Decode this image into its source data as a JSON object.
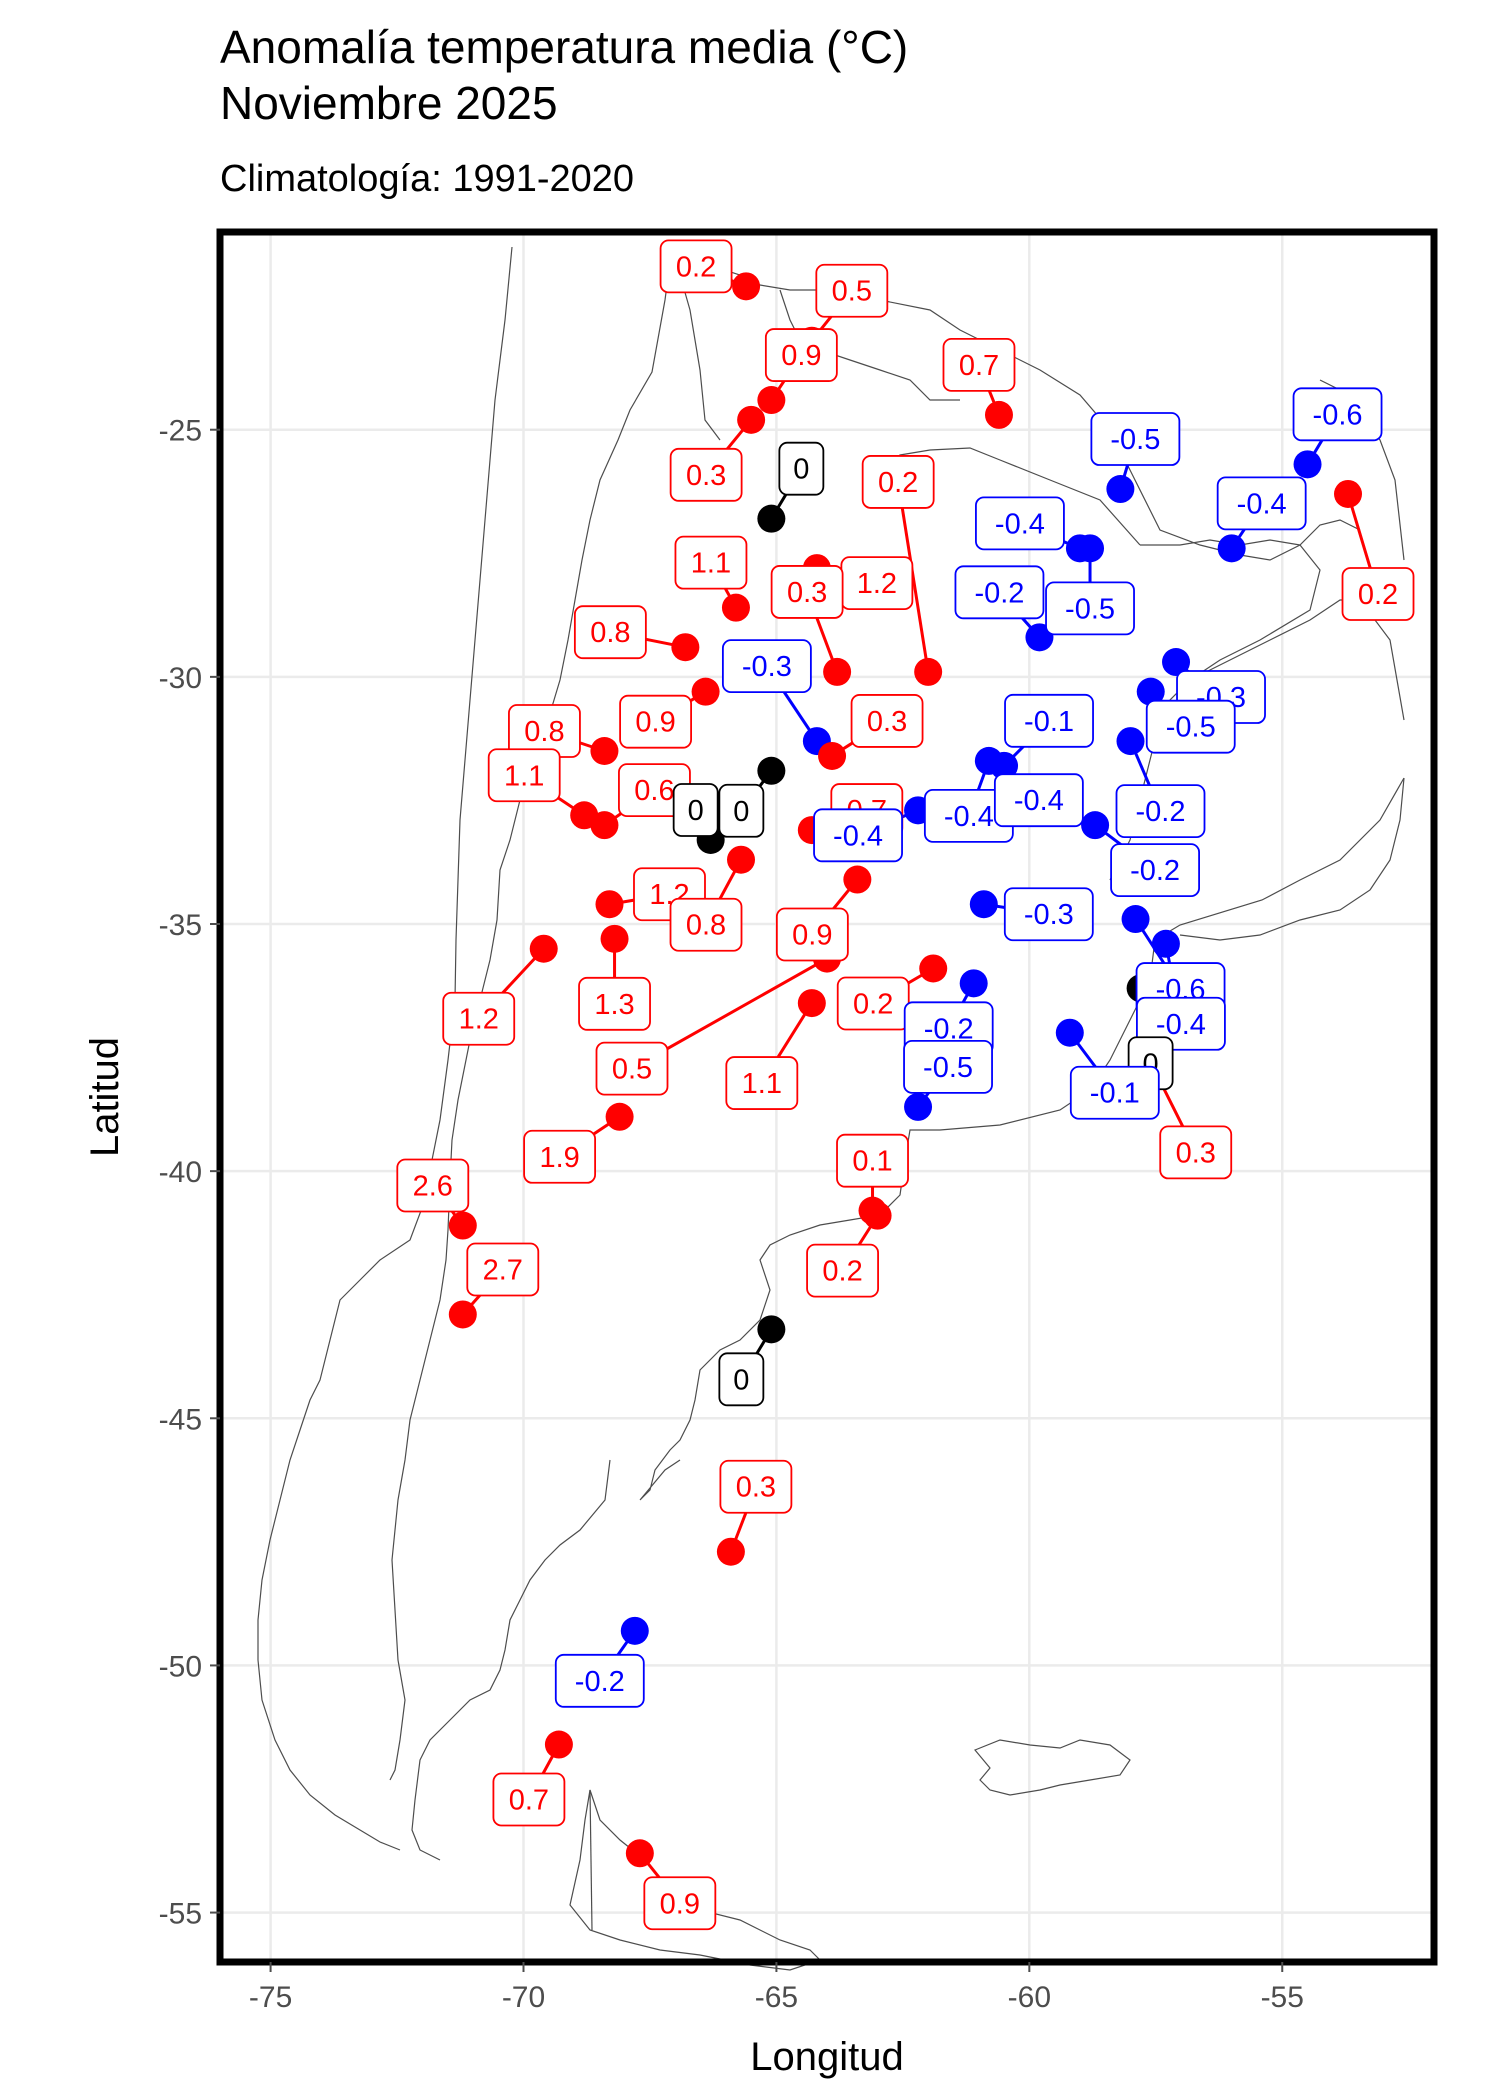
{
  "title_line1": "Anomalía temperatura media (°C)",
  "title_line2": "Noviembre 2025",
  "subtitle": "Climatología: 1991-2020",
  "x_axis_title": "Longitud",
  "y_axis_title": "Latitud",
  "x_ticks": [
    -75,
    -70,
    -65,
    -60,
    -55
  ],
  "y_ticks": [
    -25,
    -30,
    -35,
    -40,
    -45,
    -50,
    -55
  ],
  "x_range": [
    -76,
    -52
  ],
  "y_range": [
    -56,
    -21
  ],
  "colors": {
    "positive": "#ff0000",
    "negative": "#0000ff",
    "zero": "#000000",
    "grid": "#ebebeb",
    "coast": "#4d4d4d"
  },
  "stations": [
    {
      "lon": -65.6,
      "lat": -22.1,
      "value": "0.2"
    },
    {
      "lon": -64.3,
      "lat": -23.2,
      "value": "0.5"
    },
    {
      "lon": -65.1,
      "lat": -24.4,
      "value": "0.9"
    },
    {
      "lon": -65.5,
      "lat": -24.8,
      "value": "0.3"
    },
    {
      "lon": -60.6,
      "lat": -24.7,
      "value": "0.7"
    },
    {
      "lon": -65.1,
      "lat": -26.8,
      "value": "0"
    },
    {
      "lon": -62.0,
      "lat": -29.9,
      "value": "0.2"
    },
    {
      "lon": -64.2,
      "lat": -27.8,
      "value": "1.2"
    },
    {
      "lon": -65.8,
      "lat": -28.6,
      "value": "1.1"
    },
    {
      "lon": -66.8,
      "lat": -29.4,
      "value": "0.8"
    },
    {
      "lon": -63.8,
      "lat": -29.9,
      "value": "0.3"
    },
    {
      "lon": -66.4,
      "lat": -30.3,
      "value": "0.9"
    },
    {
      "lon": -64.2,
      "lat": -31.3,
      "value": "-0.3"
    },
    {
      "lon": -63.9,
      "lat": -31.6,
      "value": "0.3"
    },
    {
      "lon": -65.1,
      "lat": -31.9,
      "value": "0"
    },
    {
      "lon": -68.4,
      "lat": -31.5,
      "value": "0.8"
    },
    {
      "lon": -68.8,
      "lat": -32.8,
      "value": "1.1"
    },
    {
      "lon": -68.4,
      "lat": -33.0,
      "value": "0.6"
    },
    {
      "lon": -66.3,
      "lat": -33.3,
      "value": "0"
    },
    {
      "lon": -64.3,
      "lat": -33.1,
      "value": "0.7"
    },
    {
      "lon": -68.3,
      "lat": -34.6,
      "value": "1.2"
    },
    {
      "lon": -65.7,
      "lat": -33.7,
      "value": "0.8"
    },
    {
      "lon": -63.4,
      "lat": -34.1,
      "value": "0.9"
    },
    {
      "lon": -69.6,
      "lat": -35.5,
      "value": "1.2"
    },
    {
      "lon": -68.2,
      "lat": -35.3,
      "value": "1.3"
    },
    {
      "lon": -64.0,
      "lat": -35.7,
      "value": "0.5"
    },
    {
      "lon": -64.3,
      "lat": -36.6,
      "value": "1.1"
    },
    {
      "lon": -61.9,
      "lat": -35.9,
      "value": "0.2"
    },
    {
      "lon": -68.1,
      "lat": -38.9,
      "value": "1.9"
    },
    {
      "lon": -71.2,
      "lat": -41.1,
      "value": "2.6"
    },
    {
      "lon": -71.2,
      "lat": -42.9,
      "value": "2.7"
    },
    {
      "lon": -63.1,
      "lat": -40.8,
      "value": "0.1"
    },
    {
      "lon": -63.0,
      "lat": -40.9,
      "value": "0.2"
    },
    {
      "lon": -65.1,
      "lat": -43.2,
      "value": "0"
    },
    {
      "lon": -65.9,
      "lat": -47.7,
      "value": "0.3"
    },
    {
      "lon": -67.8,
      "lat": -49.3,
      "value": "-0.2"
    },
    {
      "lon": -69.3,
      "lat": -51.6,
      "value": "0.7"
    },
    {
      "lon": -67.7,
      "lat": -53.8,
      "value": "0.9"
    },
    {
      "lon": -58.2,
      "lat": -26.2,
      "value": "-0.5"
    },
    {
      "lon": -54.5,
      "lat": -25.7,
      "value": "-0.6"
    },
    {
      "lon": -53.7,
      "lat": -26.3,
      "value": "0.2"
    },
    {
      "lon": -59.0,
      "lat": -27.4,
      "value": "-0.4"
    },
    {
      "lon": -58.8,
      "lat": -27.4,
      "value": "-0.5"
    },
    {
      "lon": -56.0,
      "lat": -27.4,
      "value": "-0.4"
    },
    {
      "lon": -59.8,
      "lat": -29.2,
      "value": "-0.2"
    },
    {
      "lon": -57.1,
      "lat": -29.7,
      "value": "-0.3"
    },
    {
      "lon": -57.6,
      "lat": -30.3,
      "value": "-0.5"
    },
    {
      "lon": -60.5,
      "lat": -31.8,
      "value": "-0.1"
    },
    {
      "lon": -60.8,
      "lat": -31.7,
      "value": "-0.4"
    },
    {
      "lon": -58.0,
      "lat": -31.3,
      "value": "-0.2"
    },
    {
      "lon": -62.2,
      "lat": -32.7,
      "value": "-0.4"
    },
    {
      "lon": -60.8,
      "lat": -32.9,
      "value": "-0.4"
    },
    {
      "lon": -58.7,
      "lat": -33.0,
      "value": "-0.2"
    },
    {
      "lon": -60.9,
      "lat": -34.6,
      "value": "-0.3"
    },
    {
      "lon": -57.9,
      "lat": -34.9,
      "value": "-0.6"
    },
    {
      "lon": -57.3,
      "lat": -35.4,
      "value": "-0.4"
    },
    {
      "lon": -61.1,
      "lat": -36.2,
      "value": "-0.2"
    },
    {
      "lon": -57.8,
      "lat": -36.3,
      "value": "0"
    },
    {
      "lon": -59.2,
      "lat": -37.2,
      "value": "-0.1"
    },
    {
      "lon": -57.6,
      "lat": -37.8,
      "value": "0.3"
    },
    {
      "lon": -62.2,
      "lat": -38.7,
      "value": "-0.5"
    }
  ]
}
